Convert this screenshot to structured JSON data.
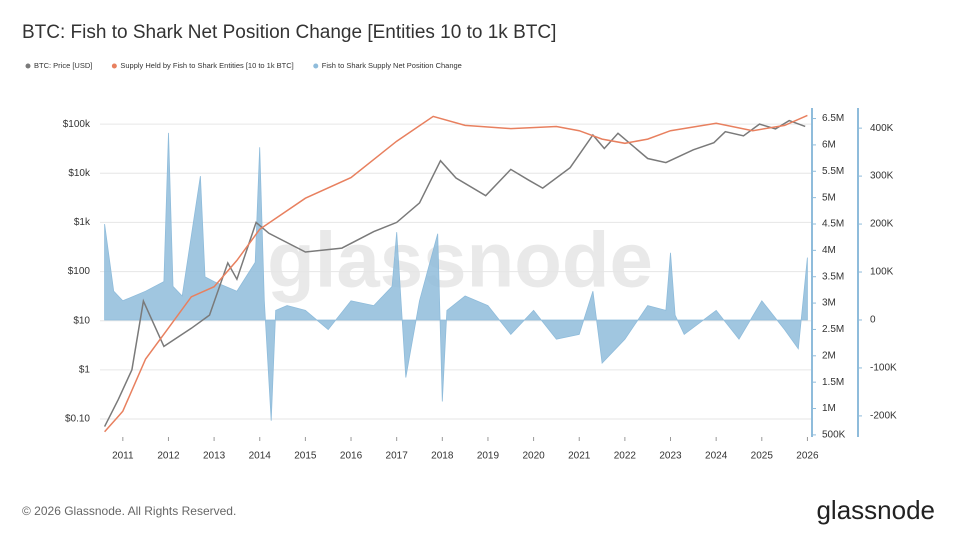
{
  "chart_data": {
    "type": "line",
    "title": "BTC: Fish to Shark Net Position Change [Entities 10 to 1k BTC]",
    "watermark": "glassnode",
    "footer": "© 2026 Glassnode. All Rights Reserved.",
    "logo": "glassnode",
    "xlim": [
      2010.5,
      2026.1
    ],
    "xticks": [
      2011,
      2012,
      2013,
      2014,
      2015,
      2016,
      2017,
      2018,
      2019,
      2020,
      2021,
      2022,
      2023,
      2024,
      2025,
      2026
    ],
    "ylim": [
      0.043,
      213000
    ],
    "yscale": "log",
    "yticks": [
      {
        "value": 0.1,
        "label": "$0.10"
      },
      {
        "value": 1,
        "label": "$1"
      },
      {
        "value": 10,
        "label": "$10"
      },
      {
        "value": 100,
        "label": "$100"
      },
      {
        "value": 1000,
        "label": "$1k"
      },
      {
        "value": 10000,
        "label": "$10k"
      },
      {
        "value": 100000,
        "label": "$100k"
      }
    ],
    "y2lim": [
      460000,
      6700000
    ],
    "y2ticks": [
      {
        "value": 500000,
        "label": "500K"
      },
      {
        "value": 1000000,
        "label": "1M"
      },
      {
        "value": 1500000,
        "label": "1.5M"
      },
      {
        "value": 2000000,
        "label": "2M"
      },
      {
        "value": 2500000,
        "label": "2.5M"
      },
      {
        "value": 3000000,
        "label": "3M"
      },
      {
        "value": 3500000,
        "label": "3.5M"
      },
      {
        "value": 4000000,
        "label": "4M"
      },
      {
        "value": 4500000,
        "label": "4.5M"
      },
      {
        "value": 5000000,
        "label": "5M"
      },
      {
        "value": 5500000,
        "label": "5.5M"
      },
      {
        "value": 6000000,
        "label": "6M"
      },
      {
        "value": 6500000,
        "label": "6.5M"
      }
    ],
    "y3lim": [
      -244000,
      442000
    ],
    "y3ticks": [
      {
        "value": -200000,
        "label": "-200K"
      },
      {
        "value": -100000,
        "label": "-100K"
      },
      0,
      {
        "value": 100000,
        "label": "100K"
      },
      {
        "value": 200000,
        "label": "200K"
      },
      {
        "value": 300000,
        "label": "300K"
      },
      {
        "value": 400000,
        "label": "400K"
      }
    ],
    "grid": true,
    "series": [
      {
        "name": "BTC: Price [USD]",
        "color": "#7a7a7a",
        "kind": "line",
        "axis": "y",
        "x": [
          2010.6,
          2010.9,
          2011.2,
          2011.45,
          2011.9,
          2012.5,
          2012.9,
          2013.3,
          2013.5,
          2013.92,
          2014.2,
          2015.0,
          2015.8,
          2016.5,
          2017.0,
          2017.5,
          2017.96,
          2018.3,
          2018.95,
          2019.5,
          2019.9,
          2020.2,
          2020.8,
          2021.3,
          2021.55,
          2021.85,
          2022.5,
          2022.9,
          2023.5,
          2023.95,
          2024.2,
          2024.6,
          2024.95,
          2025.3,
          2025.6,
          2025.95
        ],
        "values": [
          0.07,
          0.25,
          1,
          25,
          3,
          7,
          13,
          150,
          70,
          1000,
          600,
          250,
          300,
          650,
          1000,
          2500,
          18000,
          8000,
          3500,
          12000,
          7200,
          5000,
          13000,
          60000,
          32000,
          65000,
          20000,
          16500,
          30000,
          42000,
          70000,
          58000,
          100000,
          80000,
          118000,
          90000
        ]
      },
      {
        "name": "Supply Held by Fish to Shark Entities [10 to 1k BTC]",
        "color": "#e8805f",
        "kind": "line",
        "axis": "y2",
        "x": [
          2010.6,
          2010.9,
          2011.0,
          2011.5,
          2012.0,
          2012.5,
          2013.0,
          2013.5,
          2014.0,
          2015.0,
          2016.0,
          2017.0,
          2017.8,
          2018.5,
          2019.5,
          2020.5,
          2021.0,
          2021.5,
          2022.0,
          2022.5,
          2023.0,
          2024.0,
          2024.8,
          2025.5,
          2026.0
        ],
        "values": [
          560000,
          850000,
          950000,
          1940000,
          2530000,
          3120000,
          3310000,
          3810000,
          4400000,
          4990000,
          5380000,
          6070000,
          6540000,
          6370000,
          6310000,
          6350000,
          6270000,
          6110000,
          6030000,
          6110000,
          6270000,
          6410000,
          6270000,
          6370000,
          6560000
        ]
      },
      {
        "name": "Fish to Shark Supply Net Position Change",
        "color": "#8fbcdb",
        "kind": "area",
        "axis": "y3",
        "x": [
          2010.6,
          2010.8,
          2011.0,
          2011.5,
          2011.9,
          2012.0,
          2012.1,
          2012.3,
          2012.7,
          2012.8,
          2013.0,
          2013.5,
          2013.9,
          2014.0,
          2014.1,
          2014.25,
          2014.35,
          2014.6,
          2015.0,
          2015.5,
          2016.0,
          2016.5,
          2016.9,
          2017.0,
          2017.2,
          2017.5,
          2017.9,
          2018.0,
          2018.1,
          2018.5,
          2019.0,
          2019.5,
          2020.0,
          2020.5,
          2021.0,
          2021.3,
          2021.5,
          2022.0,
          2022.5,
          2022.9,
          2023.0,
          2023.1,
          2023.3,
          2024.0,
          2024.5,
          2025.0,
          2025.5,
          2025.8,
          2026.0
        ],
        "values": [
          200000,
          60000,
          40000,
          60000,
          80000,
          390000,
          70000,
          50000,
          300000,
          90000,
          80000,
          60000,
          120000,
          360000,
          40000,
          -210000,
          20000,
          30000,
          20000,
          -20000,
          40000,
          30000,
          70000,
          183000,
          -120000,
          40000,
          180000,
          -170000,
          20000,
          50000,
          30000,
          -30000,
          20000,
          -40000,
          -30000,
          60000,
          -90000,
          -40000,
          30000,
          20000,
          140000,
          10000,
          -30000,
          20000,
          -40000,
          40000,
          -20000,
          -60000,
          130000
        ]
      }
    ]
  }
}
